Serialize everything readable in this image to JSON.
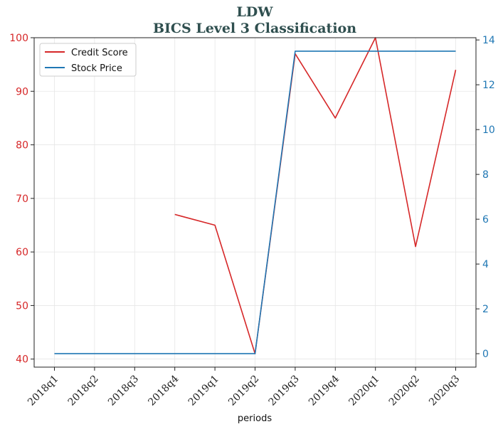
{
  "chart_data": {
    "type": "line",
    "title": "LDW",
    "subtitle": "BICS Level 3 Classification",
    "xlabel": "periods",
    "categories": [
      "2018q1",
      "2018q2",
      "2018q3",
      "2018q4",
      "2019q1",
      "2019q2",
      "2019q3",
      "2019q4",
      "2020q1",
      "2020q2",
      "2020q3"
    ],
    "series": [
      {
        "name": "Credit Score",
        "axis": "left",
        "color": "#d62728",
        "values": [
          null,
          null,
          null,
          67,
          65,
          41,
          97,
          85,
          100,
          61,
          94
        ]
      },
      {
        "name": "Stock Price",
        "axis": "right",
        "color": "#1f77b4",
        "values": [
          0,
          0,
          0,
          0,
          0,
          0,
          13.5,
          13.5,
          13.5,
          13.5,
          13.5
        ]
      }
    ],
    "y_left": {
      "ylim": [
        38.5,
        100
      ],
      "ticks": [
        40,
        50,
        60,
        70,
        80,
        90,
        100
      ],
      "color": "#d62728"
    },
    "y_right": {
      "ylim": [
        -0.6,
        14.1
      ],
      "ticks": [
        0,
        2,
        4,
        6,
        8,
        10,
        12,
        14
      ],
      "color": "#1f77b4"
    },
    "grid": true,
    "legend": {
      "placement": "top-left"
    }
  }
}
